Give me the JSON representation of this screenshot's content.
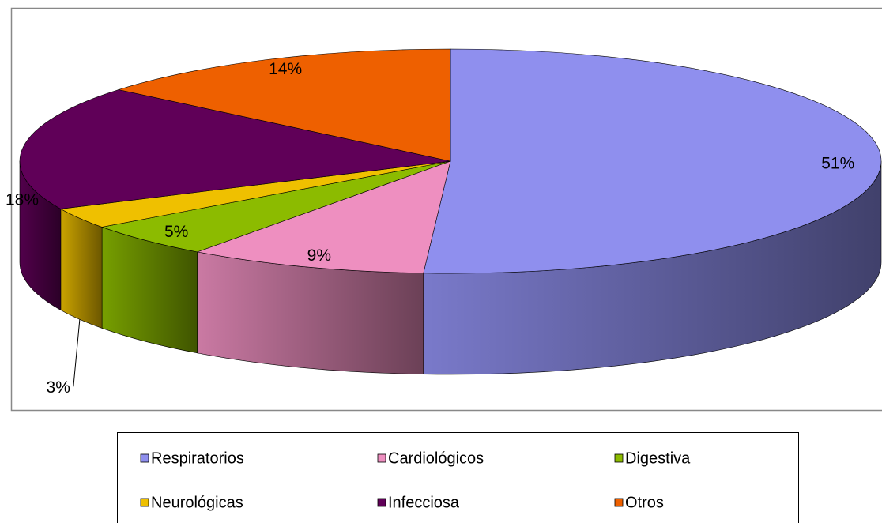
{
  "chart_data": {
    "type": "pie3d",
    "categories": [
      "Respiratorios",
      "Cardiológicos",
      "Digestiva",
      "Neurológicas",
      "Infecciosa",
      "Otros"
    ],
    "values": [
      51,
      9,
      5,
      3,
      18,
      14
    ],
    "value_labels": [
      "51%",
      "9%",
      "5%",
      "3%",
      "18%",
      "14%"
    ],
    "colors": [
      "#8f8fee",
      "#ee8fc0",
      "#8cbb00",
      "#efc000",
      "#600058",
      "#ee6000"
    ],
    "legend": "bottom"
  }
}
